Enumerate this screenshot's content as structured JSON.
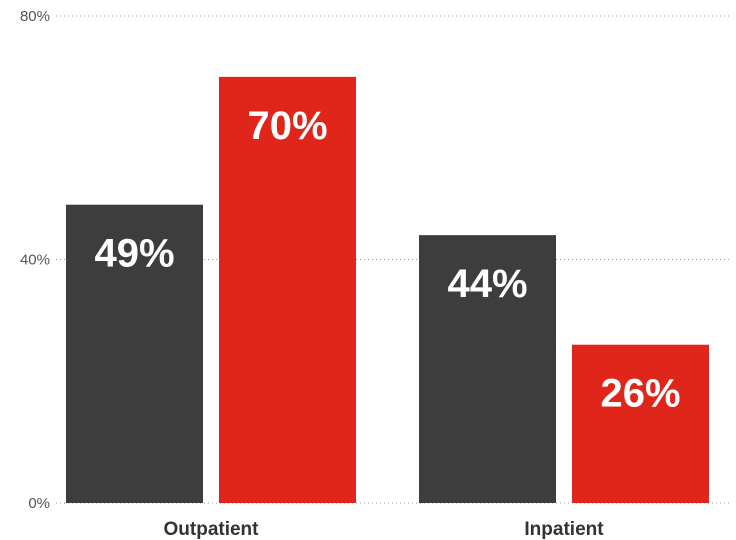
{
  "chart_data": {
    "type": "bar",
    "categories": [
      "Outpatient",
      "Inpatient"
    ],
    "series": [
      {
        "values": [
          49,
          44
        ],
        "color": "#3d3d3d"
      },
      {
        "values": [
          70,
          26
        ],
        "color": "#e0251b"
      }
    ],
    "data_labels": [
      [
        "49%",
        "44%"
      ],
      [
        "70%",
        "26%"
      ]
    ],
    "yticks": [
      0,
      40,
      80
    ],
    "ytick_labels": [
      "0%",
      "40%",
      "80%"
    ],
    "ylim": [
      0,
      80
    ],
    "grid": true,
    "legend": "none"
  }
}
